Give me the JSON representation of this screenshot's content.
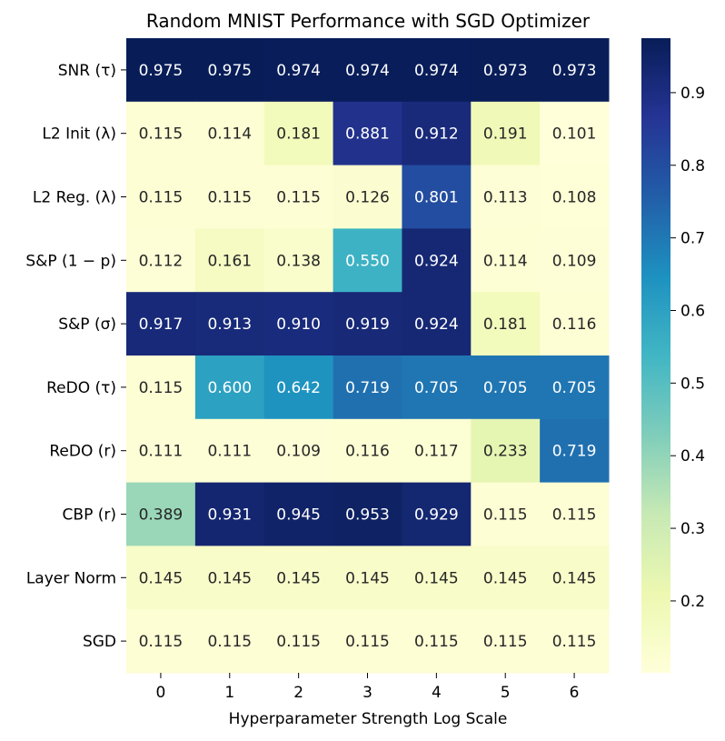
{
  "chart_data": {
    "type": "heatmap",
    "title": "Random MNIST Performance with SGD Optimizer",
    "xlabel": "Hyperparameter Strength Log Scale",
    "ylabel": "",
    "x_categories": [
      "0",
      "1",
      "2",
      "3",
      "4",
      "5",
      "6"
    ],
    "rows": [
      {
        "label": "SNR (τ)",
        "values": [
          "0.975",
          "0.975",
          "0.974",
          "0.974",
          "0.974",
          "0.973",
          "0.973"
        ]
      },
      {
        "label": "L2 Init (λ)",
        "values": [
          "0.115",
          "0.114",
          "0.181",
          "0.881",
          "0.912",
          "0.191",
          "0.101"
        ]
      },
      {
        "label": "L2 Reg. (λ)",
        "values": [
          "0.115",
          "0.115",
          "0.115",
          "0.126",
          "0.801",
          "0.113",
          "0.108"
        ]
      },
      {
        "label": "S&P (1 − p)",
        "values": [
          "0.112",
          "0.161",
          "0.138",
          "0.550",
          "0.924",
          "0.114",
          "0.109"
        ]
      },
      {
        "label": "S&P (σ)",
        "values": [
          "0.917",
          "0.913",
          "0.910",
          "0.919",
          "0.924",
          "0.181",
          "0.116"
        ]
      },
      {
        "label": "ReDO (τ)",
        "values": [
          "0.115",
          "0.600",
          "0.642",
          "0.719",
          "0.705",
          "0.705",
          "0.705"
        ]
      },
      {
        "label": "ReDO (r)",
        "values": [
          "0.111",
          "0.111",
          "0.109",
          "0.116",
          "0.117",
          "0.233",
          "0.719"
        ]
      },
      {
        "label": "CBP (r)",
        "values": [
          "0.389",
          "0.931",
          "0.945",
          "0.953",
          "0.929",
          "0.115",
          "0.115"
        ]
      },
      {
        "label": "Layer Norm",
        "values": [
          "0.145",
          "0.145",
          "0.145",
          "0.145",
          "0.145",
          "0.145",
          "0.145"
        ]
      },
      {
        "label": "SGD",
        "values": [
          "0.115",
          "0.115",
          "0.115",
          "0.115",
          "0.115",
          "0.115",
          "0.115"
        ]
      }
    ],
    "colorbar": {
      "colormap": "YlGnBu",
      "range": [
        0.101,
        0.975
      ],
      "ticks": [
        "0.2",
        "0.3",
        "0.4",
        "0.5",
        "0.6",
        "0.7",
        "0.8",
        "0.9"
      ]
    }
  }
}
